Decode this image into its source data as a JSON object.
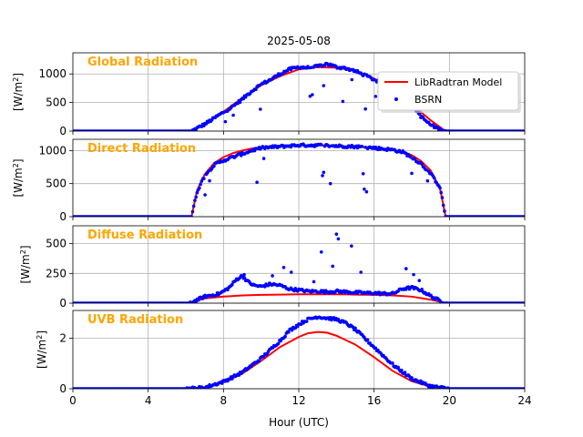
{
  "figure": {
    "title": "2025-05-08",
    "xlabel": "Hour (UTC)",
    "xticks": [
      0,
      4,
      8,
      12,
      16,
      20,
      24
    ],
    "xlim": [
      0,
      24
    ],
    "grid": true,
    "legend": {
      "placement": "top-right of first panel",
      "entries": [
        {
          "label": "LibRadtran Model",
          "style": "line",
          "color": "#ff0000"
        },
        {
          "label": "BSRN",
          "style": "marker",
          "color": "#0000ff"
        }
      ]
    },
    "panel_label_color": "#ffa500"
  },
  "chart_data": [
    {
      "type": "line",
      "panel_label": "Global Radiation",
      "ylabel_base": "[W/m",
      "ylabel_sup": "2",
      "ylabel_end": "]",
      "ylim": [
        0,
        1370
      ],
      "yticks": [
        0,
        500,
        1000
      ],
      "series": [
        {
          "name": "LibRadtran Model",
          "color": "#ff0000",
          "x": [
            0,
            6.2,
            7,
            8,
            9,
            10,
            11,
            12,
            13,
            14,
            15,
            16,
            17,
            18,
            19,
            19.8,
            24
          ],
          "y": [
            0,
            0,
            110,
            340,
            580,
            800,
            960,
            1080,
            1120,
            1110,
            1050,
            920,
            720,
            470,
            190,
            0,
            0
          ]
        },
        {
          "name": "BSRN",
          "color": "#0000ff",
          "x": [
            0,
            6.3,
            7,
            8,
            8.5,
            9,
            9.5,
            10,
            10.5,
            11,
            11.5,
            12,
            12.5,
            13,
            13.5,
            14,
            14.5,
            15,
            15.5,
            16,
            16.5,
            17,
            17.5,
            18,
            18.5,
            19,
            19.5,
            19.9,
            24
          ],
          "y": [
            0,
            0,
            120,
            330,
            430,
            560,
            700,
            820,
            900,
            1000,
            1080,
            1120,
            1110,
            1130,
            1180,
            1120,
            1100,
            1050,
            980,
            900,
            820,
            700,
            580,
            480,
            250,
            110,
            30,
            0,
            0
          ]
        }
      ]
    },
    {
      "type": "line",
      "panel_label": "Direct Radiation",
      "ylabel_base": "[W/m",
      "ylabel_sup": "2",
      "ylabel_end": "]",
      "ylim": [
        0,
        1170
      ],
      "yticks": [
        0,
        500,
        1000
      ],
      "series": [
        {
          "name": "LibRadtran Model",
          "color": "#ff0000",
          "x": [
            0,
            6.3,
            6.6,
            7,
            7.5,
            8,
            8.5,
            9,
            9.5,
            10,
            11,
            12,
            13,
            14,
            15,
            16,
            17,
            17.5,
            18,
            18.5,
            19,
            19.5,
            19.8,
            24
          ],
          "y": [
            0,
            0,
            400,
            640,
            810,
            900,
            960,
            1000,
            1030,
            1050,
            1070,
            1080,
            1080,
            1070,
            1060,
            1040,
            1010,
            980,
            930,
            840,
            700,
            430,
            0,
            0
          ]
        },
        {
          "name": "BSRN",
          "color": "#0000ff",
          "x": [
            0,
            6.3,
            6.6,
            7,
            7.5,
            8,
            8.5,
            9,
            9.5,
            10,
            10.5,
            11,
            11.5,
            12,
            13,
            14,
            15,
            16,
            17,
            17.5,
            18,
            18.5,
            19,
            19.5,
            19.8,
            24
          ],
          "y": [
            0,
            0,
            380,
            620,
            780,
            850,
            900,
            950,
            1000,
            1040,
            1050,
            1060,
            1070,
            1080,
            1080,
            1070,
            1060,
            1040,
            1010,
            980,
            900,
            800,
            650,
            450,
            0,
            0
          ]
        }
      ]
    },
    {
      "type": "line",
      "panel_label": "Diffuse Radiation",
      "ylabel_base": "[W/m",
      "ylabel_sup": "2",
      "ylabel_end": "]",
      "ylim": [
        0,
        650
      ],
      "yticks": [
        0,
        250,
        500
      ],
      "series": [
        {
          "name": "LibRadtran Model",
          "color": "#ff0000",
          "x": [
            0,
            6.2,
            7,
            8,
            9,
            10,
            11,
            12,
            13,
            14,
            15,
            16,
            17,
            18,
            19,
            19.8,
            24
          ],
          "y": [
            0,
            0,
            40,
            55,
            65,
            70,
            72,
            75,
            75,
            75,
            72,
            70,
            65,
            55,
            30,
            0,
            0
          ]
        },
        {
          "name": "BSRN",
          "color": "#0000ff",
          "x": [
            0,
            6.2,
            7,
            7.8,
            8.3,
            8.7,
            9,
            9.3,
            9.6,
            10,
            10.5,
            11,
            11.5,
            12,
            12.5,
            13,
            13.5,
            14,
            14.5,
            15,
            15.5,
            16,
            16.5,
            17,
            17.5,
            18,
            18.5,
            19,
            19.5,
            19.9,
            24
          ],
          "y": [
            0,
            0,
            55,
            80,
            130,
            200,
            230,
            180,
            150,
            140,
            160,
            150,
            120,
            110,
            100,
            100,
            95,
            100,
            95,
            90,
            85,
            85,
            80,
            80,
            120,
            130,
            110,
            60,
            20,
            0,
            0
          ]
        }
      ],
      "scatter_extra": {
        "x": [
          9.1,
          10.6,
          11.2,
          11.6,
          12.8,
          13.2,
          13.8,
          14.0,
          14.1,
          14.8,
          15.3,
          17.7,
          18.1,
          18.4
        ],
        "y": [
          240,
          230,
          300,
          260,
          180,
          430,
          310,
          580,
          540,
          480,
          260,
          290,
          240,
          190
        ]
      }
    },
    {
      "type": "line",
      "panel_label": "UVB Radiation",
      "ylabel_base": "[W/m",
      "ylabel_sup": "2",
      "ylabel_end": "]",
      "ylim": [
        0,
        3.1
      ],
      "yticks": [
        0,
        2
      ],
      "series": [
        {
          "name": "LibRadtran Model",
          "color": "#ff0000",
          "x": [
            0,
            6,
            7,
            8,
            9,
            10,
            11,
            12,
            12.5,
            13,
            13.5,
            14,
            15,
            16,
            17,
            18,
            19,
            20,
            24
          ],
          "y": [
            0,
            0,
            0.05,
            0.25,
            0.6,
            1.1,
            1.65,
            2.05,
            2.2,
            2.25,
            2.22,
            2.1,
            1.75,
            1.25,
            0.7,
            0.3,
            0.08,
            0,
            0
          ]
        },
        {
          "name": "BSRN",
          "color": "#0000ff",
          "x": [
            0,
            6,
            7,
            8,
            9,
            10,
            10.5,
            11,
            11.5,
            12,
            12.5,
            13,
            13.5,
            14,
            14.5,
            15,
            16,
            17,
            18,
            19,
            20,
            24
          ],
          "y": [
            0,
            0,
            0.05,
            0.28,
            0.65,
            1.2,
            1.55,
            1.9,
            2.3,
            2.55,
            2.75,
            2.85,
            2.8,
            2.75,
            2.6,
            2.35,
            1.65,
            0.95,
            0.4,
            0.1,
            0,
            0
          ]
        }
      ]
    }
  ]
}
